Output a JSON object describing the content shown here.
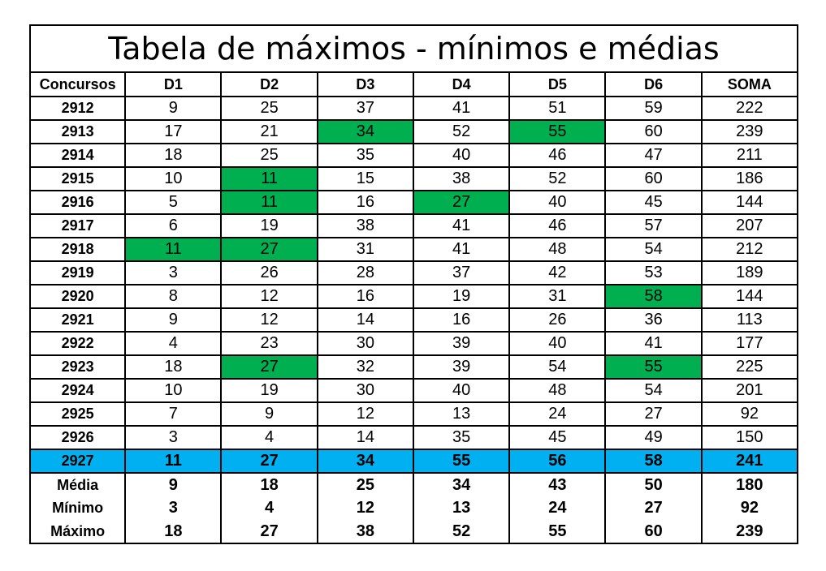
{
  "title": "Tabela de máximos - mínimos e médias",
  "headers": [
    "Concursos",
    "D1",
    "D2",
    "D3",
    "D4",
    "D5",
    "D6",
    "SOMA"
  ],
  "highlight_color": "#00b050",
  "current_row_color": "#00b0f0",
  "rows": [
    {
      "label": "2912",
      "values": [
        "9",
        "25",
        "37",
        "41",
        "51",
        "59",
        "222"
      ],
      "highlight": []
    },
    {
      "label": "2913",
      "values": [
        "17",
        "21",
        "34",
        "52",
        "55",
        "60",
        "239"
      ],
      "highlight": [
        2,
        4
      ]
    },
    {
      "label": "2914",
      "values": [
        "18",
        "25",
        "35",
        "40",
        "46",
        "47",
        "211"
      ],
      "highlight": []
    },
    {
      "label": "2915",
      "values": [
        "10",
        "11",
        "15",
        "38",
        "52",
        "60",
        "186"
      ],
      "highlight": [
        1
      ]
    },
    {
      "label": "2916",
      "values": [
        "5",
        "11",
        "16",
        "27",
        "40",
        "45",
        "144"
      ],
      "highlight": [
        1,
        3
      ]
    },
    {
      "label": "2917",
      "values": [
        "6",
        "19",
        "38",
        "41",
        "46",
        "57",
        "207"
      ],
      "highlight": []
    },
    {
      "label": "2918",
      "values": [
        "11",
        "27",
        "31",
        "41",
        "48",
        "54",
        "212"
      ],
      "highlight": [
        0,
        1
      ]
    },
    {
      "label": "2919",
      "values": [
        "3",
        "26",
        "28",
        "37",
        "42",
        "53",
        "189"
      ],
      "highlight": []
    },
    {
      "label": "2920",
      "values": [
        "8",
        "12",
        "16",
        "19",
        "31",
        "58",
        "144"
      ],
      "highlight": [
        5
      ]
    },
    {
      "label": "2921",
      "values": [
        "9",
        "12",
        "14",
        "16",
        "26",
        "36",
        "113"
      ],
      "highlight": []
    },
    {
      "label": "2922",
      "values": [
        "4",
        "23",
        "30",
        "39",
        "40",
        "41",
        "177"
      ],
      "highlight": []
    },
    {
      "label": "2923",
      "values": [
        "18",
        "27",
        "32",
        "39",
        "54",
        "55",
        "225"
      ],
      "highlight": [
        1,
        5
      ]
    },
    {
      "label": "2924",
      "values": [
        "10",
        "19",
        "30",
        "40",
        "48",
        "54",
        "201"
      ],
      "highlight": []
    },
    {
      "label": "2925",
      "values": [
        "7",
        "9",
        "12",
        "13",
        "24",
        "27",
        "92"
      ],
      "highlight": []
    },
    {
      "label": "2926",
      "values": [
        "3",
        "4",
        "14",
        "35",
        "45",
        "49",
        "150"
      ],
      "highlight": []
    }
  ],
  "current": {
    "label": "2927",
    "values": [
      "11",
      "27",
      "34",
      "55",
      "56",
      "58",
      "241"
    ]
  },
  "stats": [
    {
      "label": "Média",
      "values": [
        "9",
        "18",
        "25",
        "34",
        "43",
        "50",
        "180"
      ]
    },
    {
      "label": "Mínimo",
      "values": [
        "3",
        "4",
        "12",
        "13",
        "24",
        "27",
        "92"
      ]
    },
    {
      "label": "Máximo",
      "values": [
        "18",
        "27",
        "38",
        "52",
        "55",
        "60",
        "239"
      ]
    }
  ]
}
